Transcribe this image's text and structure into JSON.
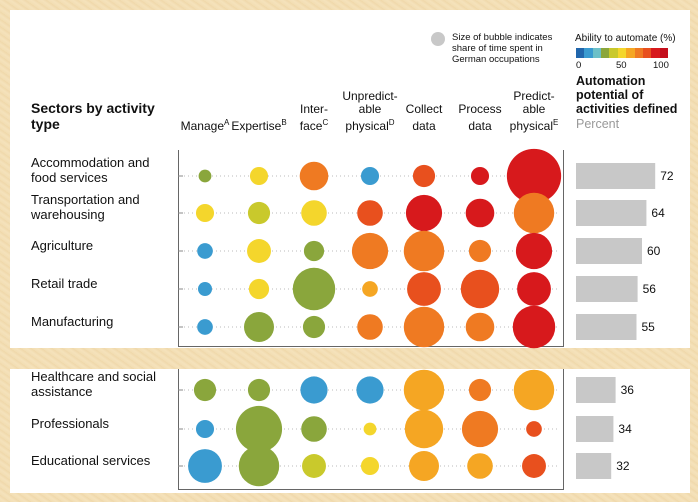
{
  "colors": {
    "scale": [
      "#2166ac",
      "#3a9bd0",
      "#6cc0c8",
      "#8aa63c",
      "#c9c92c",
      "#f4d62c",
      "#f5a623",
      "#ef7a22",
      "#e8501e",
      "#d7191c",
      "#c40e1b"
    ],
    "bar": "#c8c8c8"
  },
  "legend": {
    "size_note_line1": "Size of bubble indicates",
    "size_note_line2": "share of time spent in",
    "size_note_line3": "German occupations",
    "scale_title": "Ability to automate (%)",
    "scale_ticks": [
      "0",
      "50",
      "100"
    ]
  },
  "header": {
    "sectors_title_line1": "Sectors by activity",
    "sectors_title_line2": "type",
    "automation_line1": "Automation",
    "automation_line2": "potential of",
    "automation_line3": "activities defined",
    "automation_unit": "Percent"
  },
  "columns": [
    {
      "line1": "",
      "line2": "",
      "line3": "Manage",
      "sup": "A"
    },
    {
      "line1": "",
      "line2": "",
      "line3": "Expertise",
      "sup": "B"
    },
    {
      "line1": "",
      "line2": "Inter-",
      "line3": "face",
      "sup": "C"
    },
    {
      "line1": "Unpredict-",
      "line2": "able",
      "line3": "physical",
      "sup": "D"
    },
    {
      "line1": "",
      "line2": "Collect",
      "line3": "data",
      "sup": ""
    },
    {
      "line1": "",
      "line2": "Process",
      "line3": "data",
      "sup": ""
    },
    {
      "line1": "Predict-",
      "line2": "able",
      "line3": "physical",
      "sup": "E"
    }
  ],
  "chart_data": {
    "type": "bubble-matrix",
    "rows": [
      {
        "label": "Accommodation and food services",
        "automation": 72,
        "bubbles": [
          {
            "size": 1,
            "ability": 25
          },
          {
            "size": 2,
            "ability": 45
          },
          {
            "size": 5,
            "ability": 65
          },
          {
            "size": 2,
            "ability": 5
          },
          {
            "size": 3,
            "ability": 75
          },
          {
            "size": 2,
            "ability": 88
          },
          {
            "size": 18,
            "ability": 92
          }
        ]
      },
      {
        "label": "Transportation and warehousing",
        "automation": 64,
        "bubbles": [
          {
            "size": 2,
            "ability": 45
          },
          {
            "size": 3,
            "ability": 35
          },
          {
            "size": 4,
            "ability": 45
          },
          {
            "size": 4,
            "ability": 75
          },
          {
            "size": 8,
            "ability": 92
          },
          {
            "size": 5,
            "ability": 88
          },
          {
            "size": 10,
            "ability": 72
          }
        ]
      },
      {
        "label": "Agriculture",
        "automation": 60,
        "bubbles": [
          {
            "size": 1.5,
            "ability": 5
          },
          {
            "size": 3.5,
            "ability": 45
          },
          {
            "size": 2.5,
            "ability": 25
          },
          {
            "size": 8,
            "ability": 72
          },
          {
            "size": 10,
            "ability": 72
          },
          {
            "size": 3,
            "ability": 72
          },
          {
            "size": 8,
            "ability": 92
          }
        ]
      },
      {
        "label": "Retail trade",
        "automation": 56,
        "bubbles": [
          {
            "size": 1.2,
            "ability": 5
          },
          {
            "size": 2.5,
            "ability": 45
          },
          {
            "size": 11,
            "ability": 25
          },
          {
            "size": 1.5,
            "ability": 55
          },
          {
            "size": 7,
            "ability": 78
          },
          {
            "size": 9,
            "ability": 78
          },
          {
            "size": 7,
            "ability": 92
          }
        ]
      },
      {
        "label": "Manufacturing",
        "automation": 55,
        "bubbles": [
          {
            "size": 1.5,
            "ability": 5
          },
          {
            "size": 5.5,
            "ability": 25
          },
          {
            "size": 3,
            "ability": 25
          },
          {
            "size": 4,
            "ability": 72
          },
          {
            "size": 10,
            "ability": 70
          },
          {
            "size": 5,
            "ability": 65
          },
          {
            "size": 11,
            "ability": 92
          }
        ]
      },
      {
        "label": "Healthcare and social assistance",
        "automation": 36,
        "bubbles": [
          {
            "size": 3,
            "ability": 25
          },
          {
            "size": 3,
            "ability": 25
          },
          {
            "size": 4.5,
            "ability": 5
          },
          {
            "size": 4.5,
            "ability": 5
          },
          {
            "size": 10,
            "ability": 55
          },
          {
            "size": 3,
            "ability": 72
          },
          {
            "size": 10,
            "ability": 55
          }
        ]
      },
      {
        "label": "Professionals",
        "automation": 34,
        "bubbles": [
          {
            "size": 2,
            "ability": 5
          },
          {
            "size": 13,
            "ability": 25
          },
          {
            "size": 4,
            "ability": 25
          },
          {
            "size": 1,
            "ability": 45
          },
          {
            "size": 9,
            "ability": 62
          },
          {
            "size": 8,
            "ability": 65
          },
          {
            "size": 1.5,
            "ability": 80
          }
        ]
      },
      {
        "label": "Educational services",
        "automation": 32,
        "bubbles": [
          {
            "size": 7,
            "ability": 5
          },
          {
            "size": 10,
            "ability": 25
          },
          {
            "size": 3.5,
            "ability": 35
          },
          {
            "size": 2,
            "ability": 45
          },
          {
            "size": 5.5,
            "ability": 55
          },
          {
            "size": 4,
            "ability": 62
          },
          {
            "size": 3.5,
            "ability": 75
          }
        ]
      }
    ],
    "bubble_scale": "Ability to automate (%)",
    "xlim": [
      0,
      100
    ]
  }
}
